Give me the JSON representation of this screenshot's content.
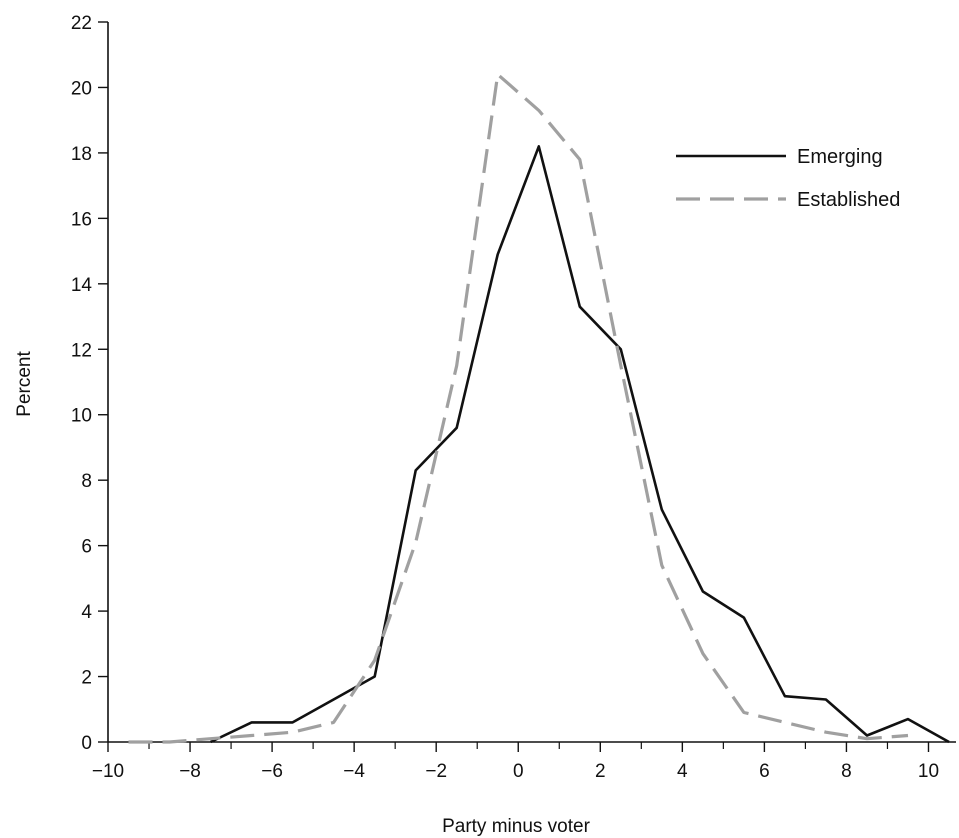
{
  "chart_data": {
    "type": "line",
    "title": "",
    "xlabel": "Party minus voter",
    "ylabel": "Percent",
    "xlim": [
      -10,
      10.5
    ],
    "ylim": [
      0,
      22
    ],
    "x_ticks": [
      -10,
      -8,
      -6,
      -4,
      -2,
      0,
      2,
      4,
      6,
      8,
      10
    ],
    "x_tick_labels": [
      "−10",
      "−8",
      "−6",
      "−4",
      "−2",
      "0",
      "2",
      "4",
      "6",
      "8",
      "10"
    ],
    "x_minor_ticks": [
      -9,
      -7,
      -5,
      -3,
      -1,
      1,
      3,
      5,
      7,
      9
    ],
    "y_ticks": [
      0,
      2,
      4,
      6,
      8,
      10,
      12,
      14,
      16,
      18,
      20,
      22
    ],
    "y_tick_labels": [
      "0",
      "2",
      "4",
      "6",
      "8",
      "10",
      "12",
      "14",
      "16",
      "18",
      "20",
      "22"
    ],
    "grid": false,
    "legend_position": "top-right",
    "series": [
      {
        "name": "Emerging",
        "style": "solid",
        "color": "#111111",
        "x": [
          -7.5,
          -6.5,
          -5.5,
          -4.5,
          -3.5,
          -2.5,
          -1.5,
          -0.5,
          0.5,
          1.5,
          2.5,
          3.5,
          4.5,
          5.5,
          6.5,
          7.5,
          8.5,
          9.5,
          10.5
        ],
        "y": [
          0.0,
          0.6,
          0.6,
          1.3,
          2.0,
          8.3,
          9.6,
          14.9,
          18.2,
          13.3,
          12.0,
          7.1,
          4.6,
          3.8,
          1.4,
          1.3,
          0.2,
          0.7,
          0.0
        ]
      },
      {
        "name": "Established",
        "style": "dashed",
        "color": "#a0a0a0",
        "x": [
          -9.5,
          -8.5,
          -7.5,
          -6.5,
          -5.5,
          -4.5,
          -3.5,
          -2.5,
          -1.5,
          -0.5,
          0.5,
          1.5,
          2.5,
          3.5,
          4.5,
          5.5,
          6.5,
          7.5,
          8.5,
          9.5
        ],
        "y": [
          0.0,
          0.0,
          0.1,
          0.2,
          0.3,
          0.6,
          2.5,
          6.1,
          11.5,
          20.4,
          19.3,
          17.8,
          11.5,
          5.4,
          2.7,
          0.9,
          0.6,
          0.3,
          0.1,
          0.2
        ]
      }
    ]
  }
}
